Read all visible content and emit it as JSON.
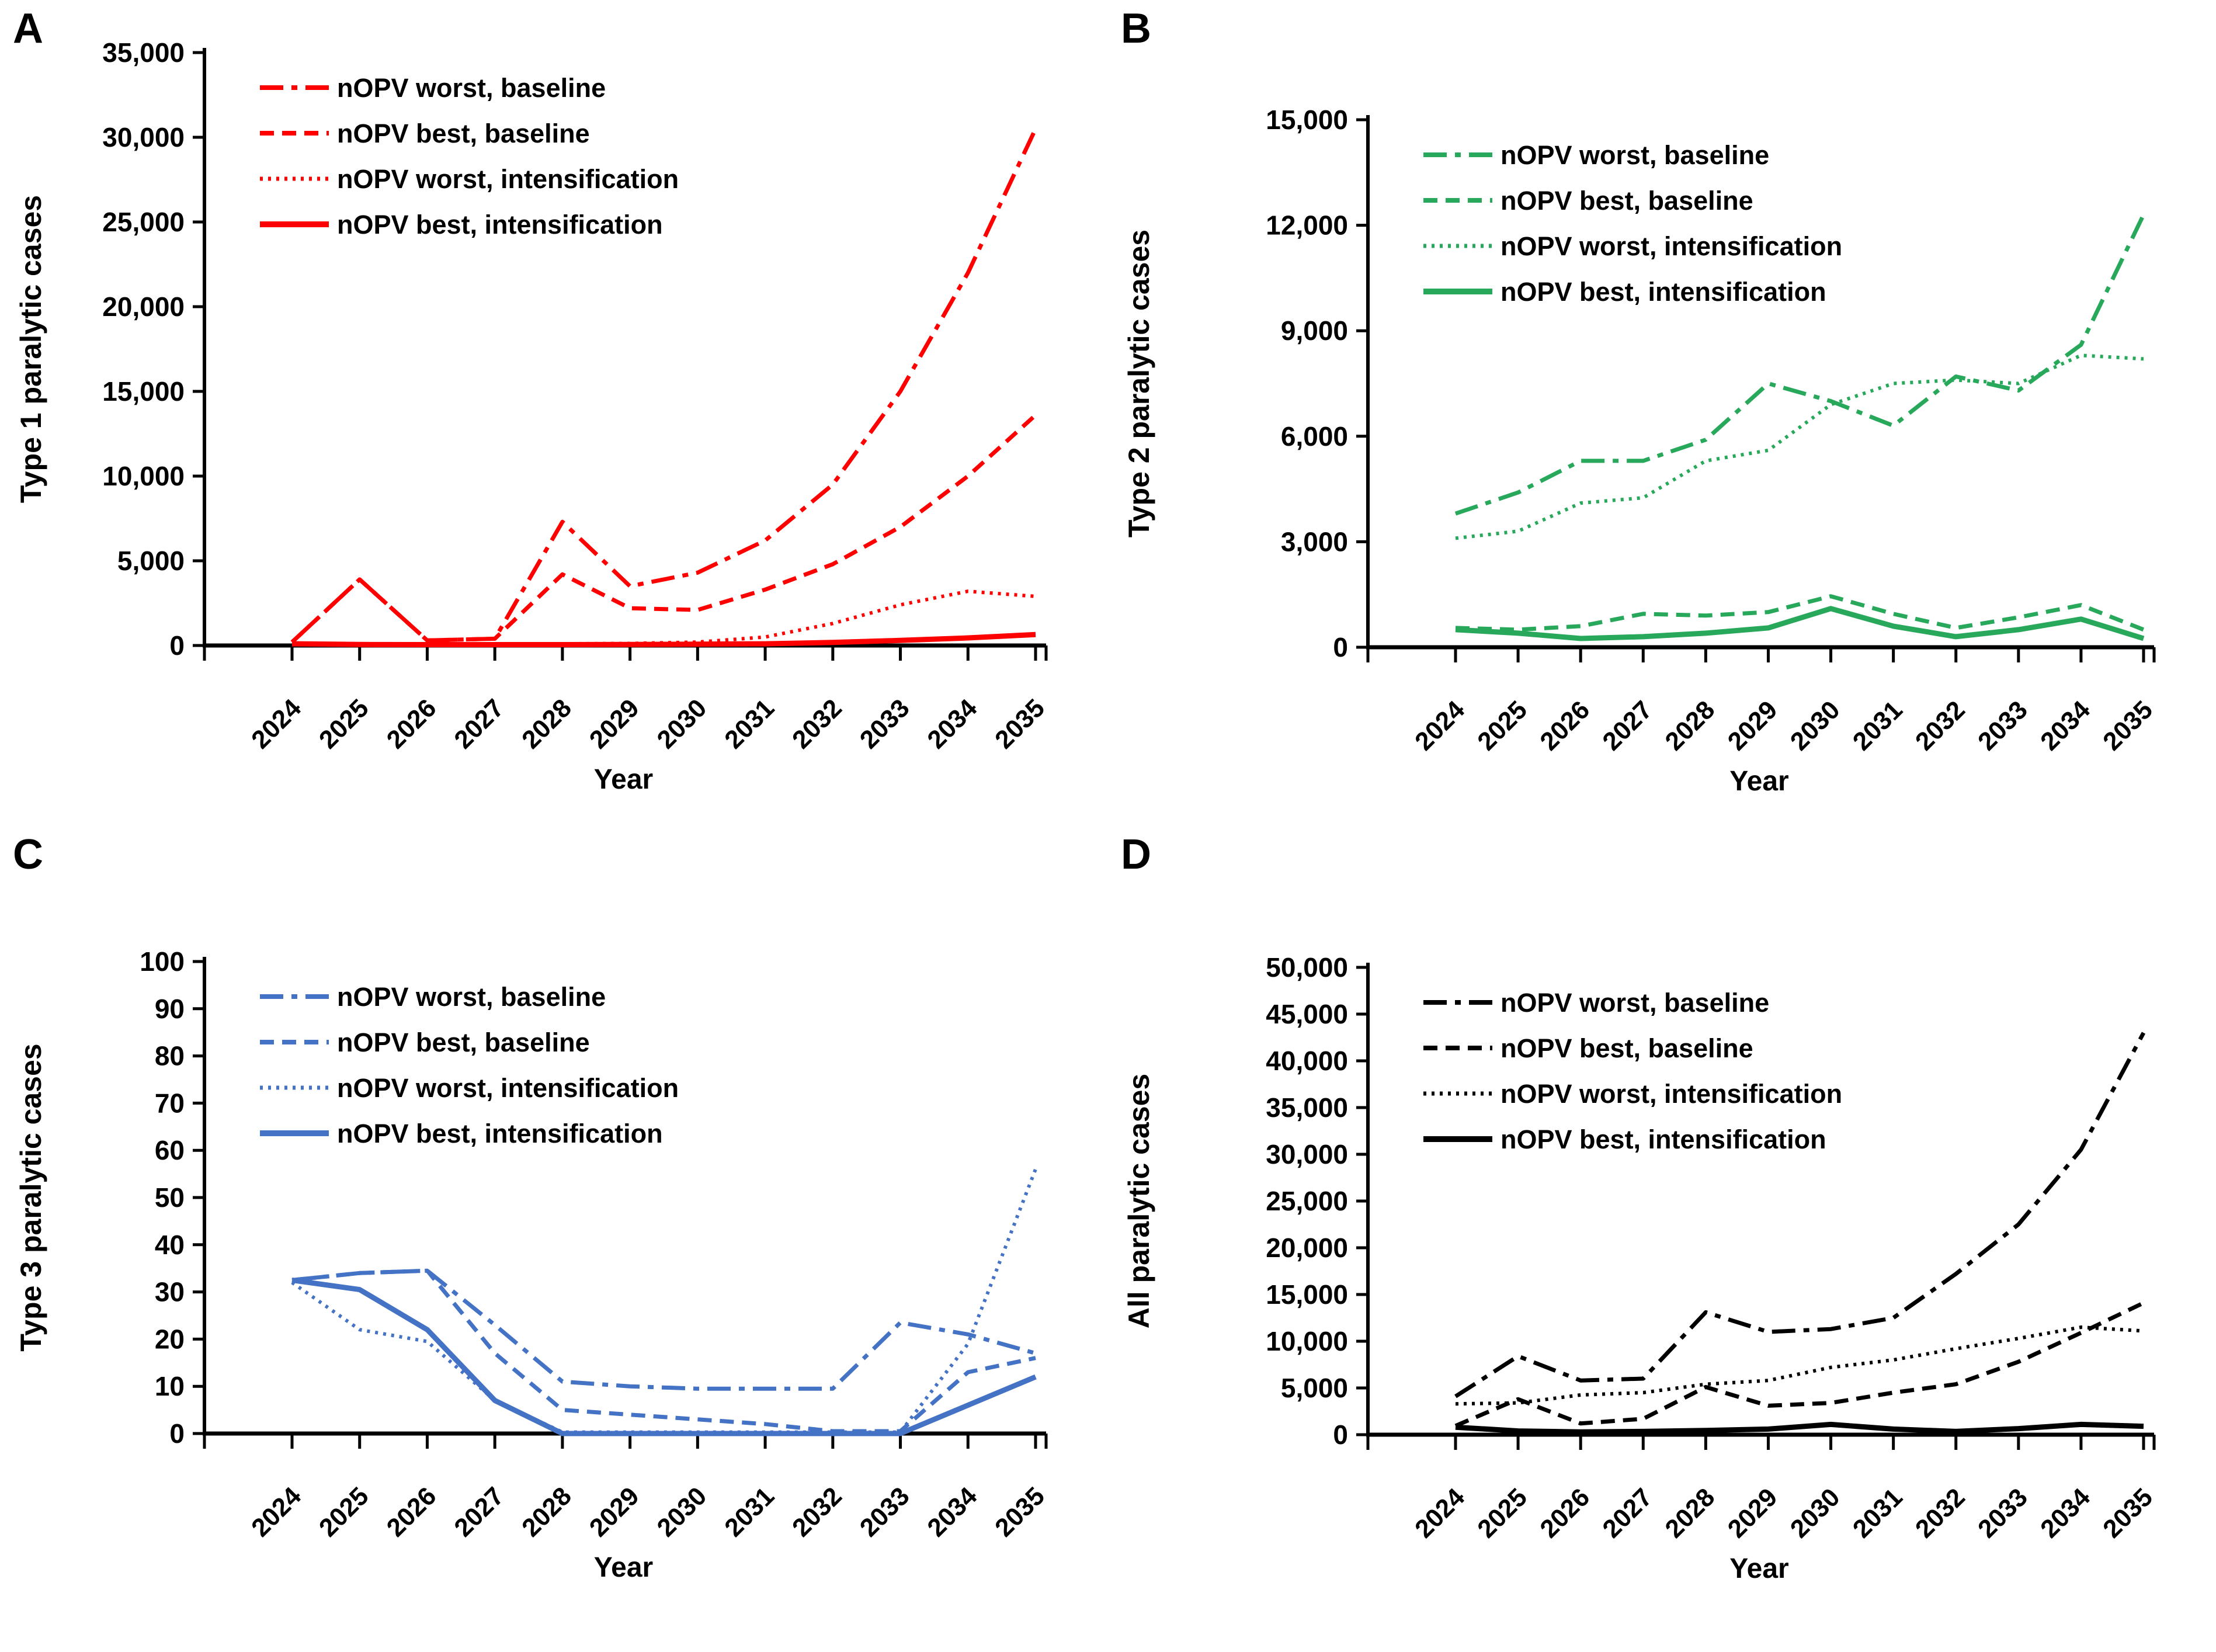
{
  "figure_title": "",
  "x_axis_label": "Year",
  "years": [
    2024,
    2025,
    2026,
    2027,
    2028,
    2029,
    2030,
    2031,
    2032,
    2033,
    2034,
    2035
  ],
  "legend_labels": [
    "nOPV worst, baseline",
    "nOPV best, baseline",
    "nOPV worst, intensification",
    "nOPV best, intensification"
  ],
  "chart_data": [
    {
      "panel": "A",
      "type": "line",
      "ylabel": "Type 1 paralytic cases",
      "xlabel": "Year",
      "color": "#FF0000",
      "ylim": [
        0,
        35000
      ],
      "ytick_labels": [
        "0",
        "5,000",
        "10,000",
        "15,000",
        "20,000",
        "25,000",
        "30,000",
        "35,000"
      ],
      "x": [
        2024,
        2025,
        2026,
        2027,
        2028,
        2029,
        2030,
        2031,
        2032,
        2033,
        2034,
        2035
      ],
      "grid": false,
      "legend_position": "top-left-inside",
      "series": [
        {
          "name": "nOPV worst, baseline",
          "style": "dashdot",
          "values": [
            200,
            3900,
            300,
            400,
            7300,
            3500,
            4300,
            6200,
            9500,
            15000,
            22000,
            30500
          ]
        },
        {
          "name": "nOPV best, baseline",
          "style": "dashed",
          "values": [
            200,
            3900,
            300,
            400,
            4200,
            2200,
            2100,
            3300,
            4800,
            7000,
            10000,
            13600
          ]
        },
        {
          "name": "nOPV worst, intensification",
          "style": "dotted",
          "values": [
            100,
            80,
            80,
            80,
            100,
            120,
            200,
            500,
            1300,
            2400,
            3200,
            2900
          ]
        },
        {
          "name": "nOPV best, intensification",
          "style": "solid",
          "values": [
            100,
            60,
            50,
            50,
            50,
            60,
            80,
            100,
            180,
            300,
            450,
            650
          ]
        }
      ]
    },
    {
      "panel": "B",
      "type": "line",
      "ylabel": "Type 2 paralytic cases",
      "xlabel": "Year",
      "color": "#28A85A",
      "ylim": [
        0,
        15000
      ],
      "ytick_labels": [
        "0",
        "3,000",
        "6,000",
        "9,000",
        "12,000",
        "15,000"
      ],
      "x": [
        2024,
        2025,
        2026,
        2027,
        2028,
        2029,
        2030,
        2031,
        2032,
        2033,
        2034,
        2035
      ],
      "grid": false,
      "legend_position": "top-left-inside",
      "series": [
        {
          "name": "nOPV worst, baseline",
          "style": "dashdot",
          "values": [
            3800,
            4400,
            5300,
            5300,
            5900,
            7500,
            7000,
            6300,
            7700,
            7300,
            8600,
            12300
          ]
        },
        {
          "name": "nOPV best, baseline",
          "style": "dashed",
          "values": [
            550,
            500,
            600,
            950,
            900,
            1000,
            1450,
            950,
            550,
            850,
            1200,
            500
          ]
        },
        {
          "name": "nOPV worst, intensification",
          "style": "dotted",
          "values": [
            3100,
            3300,
            4100,
            4250,
            5300,
            5600,
            6900,
            7500,
            7600,
            7500,
            8300,
            8200
          ]
        },
        {
          "name": "nOPV best, intensification",
          "style": "solid",
          "values": [
            500,
            400,
            250,
            300,
            400,
            550,
            1100,
            600,
            300,
            500,
            800,
            250
          ]
        }
      ]
    },
    {
      "panel": "C",
      "type": "line",
      "ylabel": "Type 3 paralytic cases",
      "xlabel": "Year",
      "color": "#4472C4",
      "ylim": [
        0,
        100
      ],
      "ytick_labels": [
        "0",
        "10",
        "20",
        "30",
        "40",
        "50",
        "60",
        "70",
        "80",
        "90",
        "100"
      ],
      "x": [
        2024,
        2025,
        2026,
        2027,
        2028,
        2029,
        2030,
        2031,
        2032,
        2033,
        2034,
        2035
      ],
      "grid": false,
      "legend_position": "top-left-inside",
      "series": [
        {
          "name": "nOPV worst, baseline",
          "style": "dashdot",
          "values": [
            32.5,
            34,
            34.5,
            23,
            11,
            10,
            9.5,
            9.5,
            9.5,
            23.5,
            21,
            17
          ]
        },
        {
          "name": "nOPV best, baseline",
          "style": "dashed",
          "values": [
            32.5,
            34,
            34.5,
            17,
            5,
            4,
            3,
            2,
            0.5,
            0.5,
            13,
            16
          ]
        },
        {
          "name": "nOPV worst, intensification",
          "style": "dotted",
          "values": [
            32,
            22,
            19.5,
            7,
            0.3,
            0.3,
            0.3,
            0.3,
            0.3,
            0.3,
            19,
            56
          ]
        },
        {
          "name": "nOPV best, intensification",
          "style": "solid",
          "values": [
            32.5,
            30.5,
            22,
            7,
            0,
            0,
            0,
            0,
            0,
            0,
            6,
            12
          ]
        }
      ]
    },
    {
      "panel": "D",
      "type": "line",
      "ylabel": "All paralytic cases",
      "xlabel": "Year",
      "color": "#000000",
      "ylim": [
        0,
        50000
      ],
      "ytick_labels": [
        "0",
        "5,000",
        "10,000",
        "15,000",
        "20,000",
        "25,000",
        "30,000",
        "35,000",
        "40,000",
        "45,000",
        "50,000"
      ],
      "x": [
        2024,
        2025,
        2026,
        2027,
        2028,
        2029,
        2030,
        2031,
        2032,
        2033,
        2034,
        2035
      ],
      "grid": false,
      "legend_position": "top-left-inside",
      "series": [
        {
          "name": "nOPV worst, baseline",
          "style": "dashdot",
          "values": [
            4100,
            8400,
            5800,
            6000,
            13100,
            11000,
            11300,
            12500,
            17200,
            22500,
            30500,
            43000
          ]
        },
        {
          "name": "nOPV best, baseline",
          "style": "dashed",
          "values": [
            950,
            3800,
            1200,
            1700,
            5100,
            3100,
            3400,
            4500,
            5400,
            7800,
            10900,
            14100
          ]
        },
        {
          "name": "nOPV worst, intensification",
          "style": "dotted",
          "values": [
            3300,
            3400,
            4250,
            4500,
            5400,
            5800,
            7200,
            8000,
            9200,
            10300,
            11500,
            11100
          ]
        },
        {
          "name": "nOPV best, intensification",
          "style": "solid",
          "values": [
            800,
            400,
            300,
            350,
            450,
            600,
            1100,
            600,
            350,
            650,
            1100,
            900
          ]
        }
      ]
    }
  ]
}
